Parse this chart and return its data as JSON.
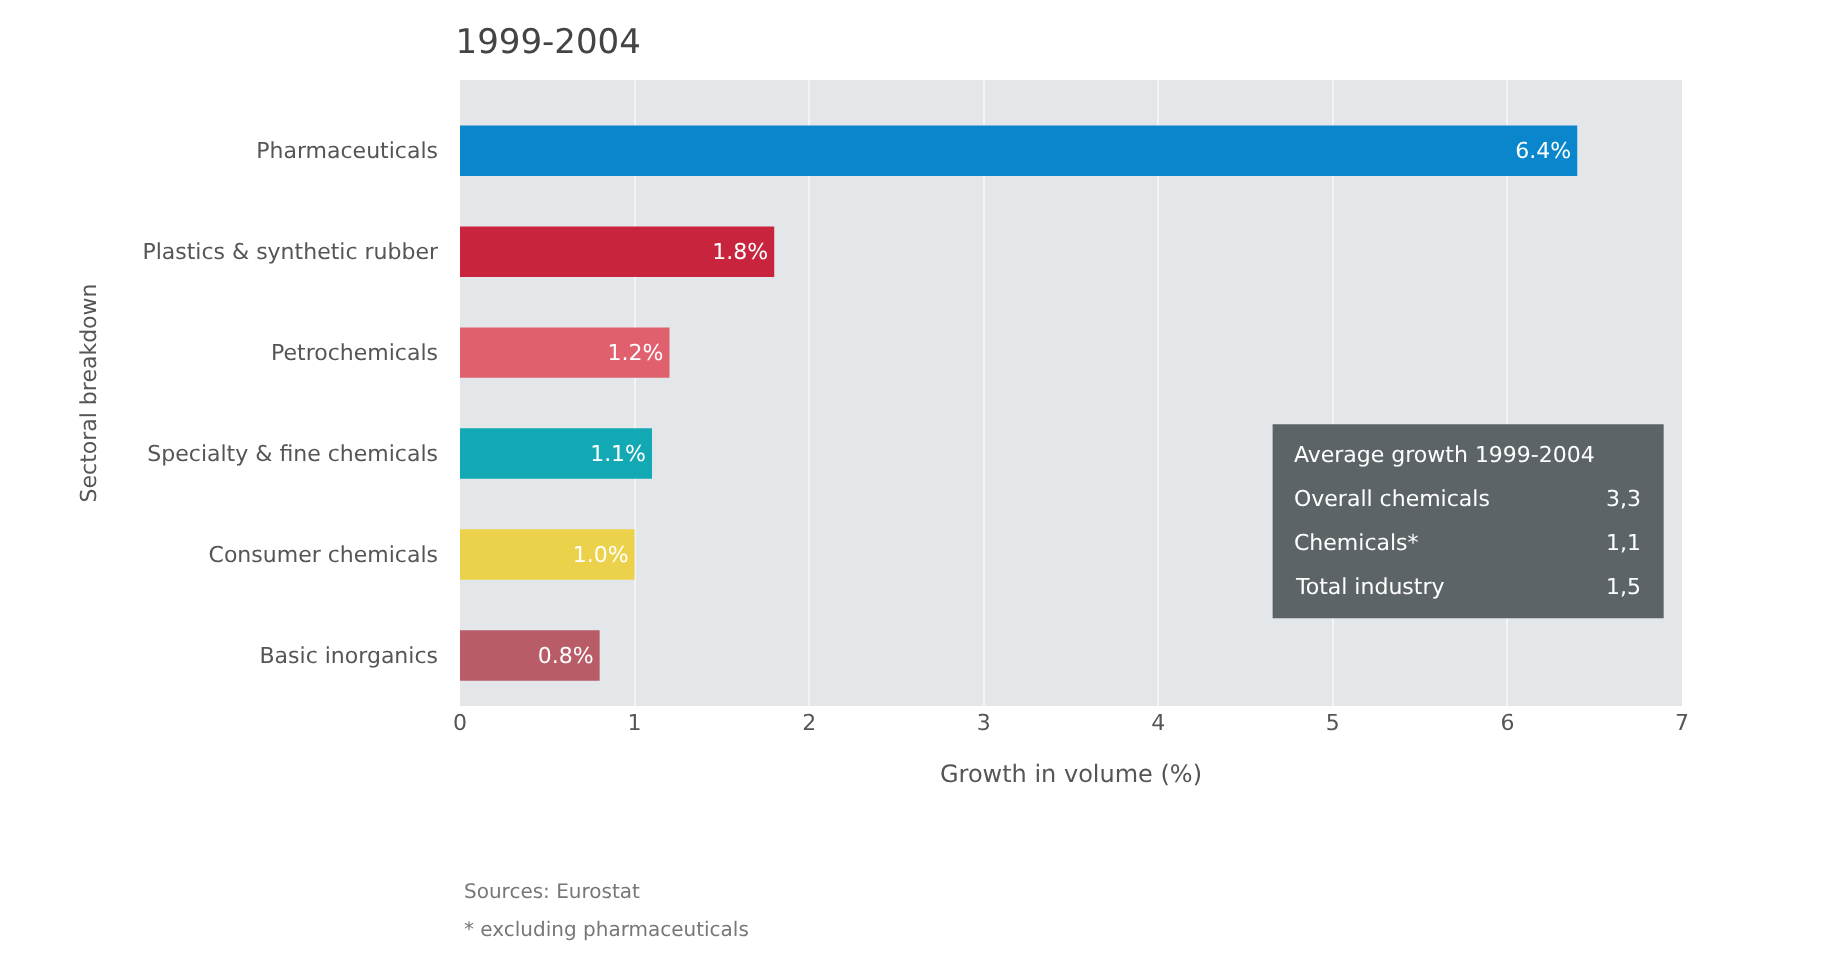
{
  "chart_data": {
    "type": "bar",
    "orientation": "horizontal",
    "title": "1999-2004",
    "xlabel": "Growth in volume (%)",
    "ylabel": "Sectoral breakdown",
    "categories": [
      "Pharmaceuticals",
      "Plastics & synthetic rubber",
      "Petrochemicals",
      "Specialty & fine chemicals",
      "Consumer chemicals",
      "Basic inorganics"
    ],
    "values": [
      6.4,
      1.8,
      1.2,
      1.1,
      1.0,
      0.8
    ],
    "colors": [
      "#0a86cc",
      "#c8243e",
      "#e0606e",
      "#13a9b4",
      "#ecd24a",
      "#b85c68"
    ],
    "value_labels": [
      "6.4%",
      "1.8%",
      "1.2%",
      "1.1%",
      "1.0%",
      "0.8%"
    ],
    "xlim": [
      0,
      7
    ],
    "xticks": [
      0,
      1,
      2,
      3,
      4,
      5,
      6,
      7
    ],
    "grid": "x",
    "legend": false,
    "annotations": [
      "Average growth 1999-2004",
      "Overall chemicals\t3,3",
      "Chemicals*\t1,1",
      "Total industry\t1,5",
      "Sources: Eurostat",
      "* excluding pharmaceuticals"
    ]
  }
}
